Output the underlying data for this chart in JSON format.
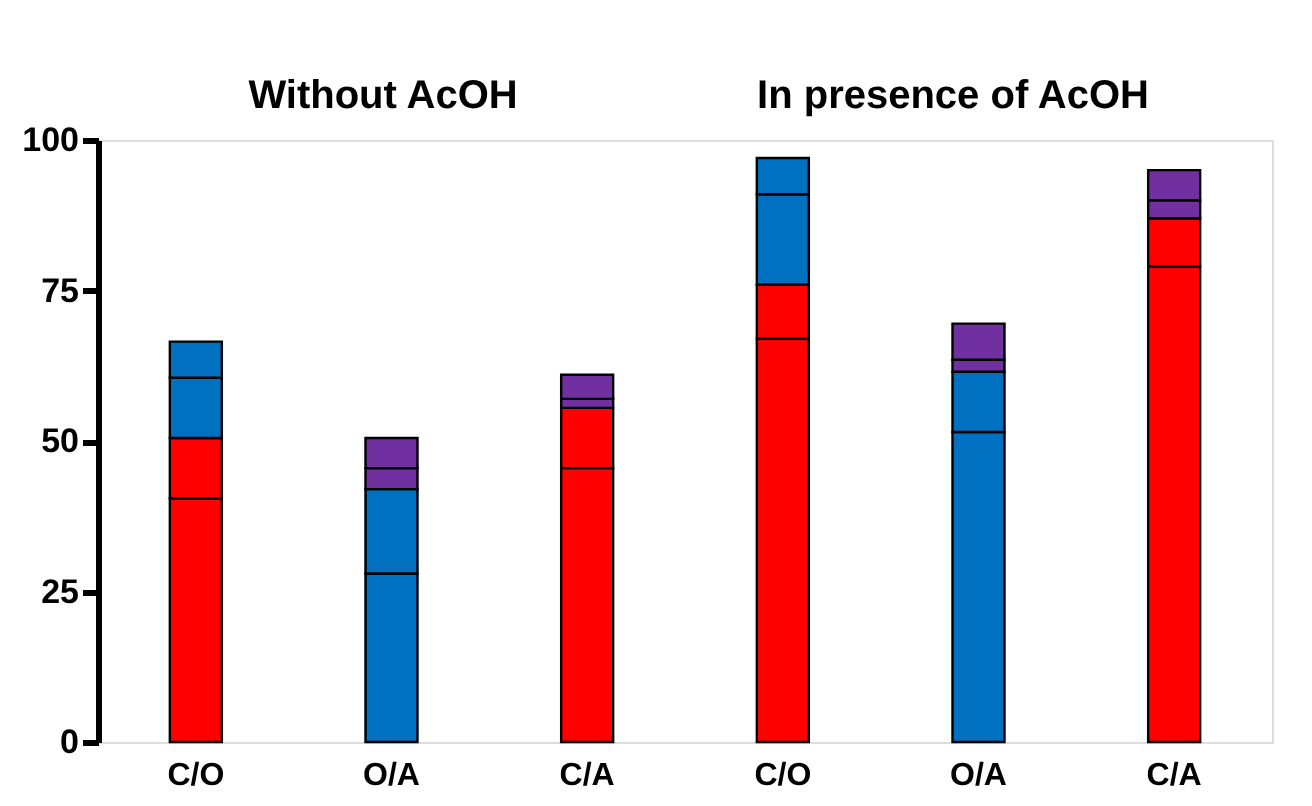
{
  "chart_data": {
    "type": "bar",
    "stacked": true,
    "categories": [
      "C/O",
      "O/A",
      "C/A",
      "C/O",
      "O/A",
      "C/A"
    ],
    "series": [
      {
        "color": "#ff0000",
        "values": [
          40.5,
          null,
          45.5,
          67,
          null,
          79
        ]
      },
      {
        "color": "#ff0000",
        "values": [
          10,
          null,
          10,
          9,
          null,
          8
        ]
      },
      {
        "color": "#0070c0",
        "values": [
          10,
          28,
          null,
          15,
          51.5,
          null
        ]
      },
      {
        "color": "#0070c0",
        "values": [
          6,
          14,
          null,
          6,
          10,
          null
        ]
      },
      {
        "color": "#7030a0",
        "values": [
          null,
          3.5,
          1.5,
          null,
          2,
          3
        ]
      },
      {
        "color": "#7030a0",
        "values": [
          null,
          5,
          4,
          null,
          6,
          5
        ]
      }
    ],
    "ylim": [
      0,
      100
    ],
    "yticks": [
      0,
      25,
      50,
      75,
      100
    ],
    "grid": false,
    "legend": false,
    "annotations": [
      "Without AcOH",
      "In presence of AcOH"
    ]
  }
}
